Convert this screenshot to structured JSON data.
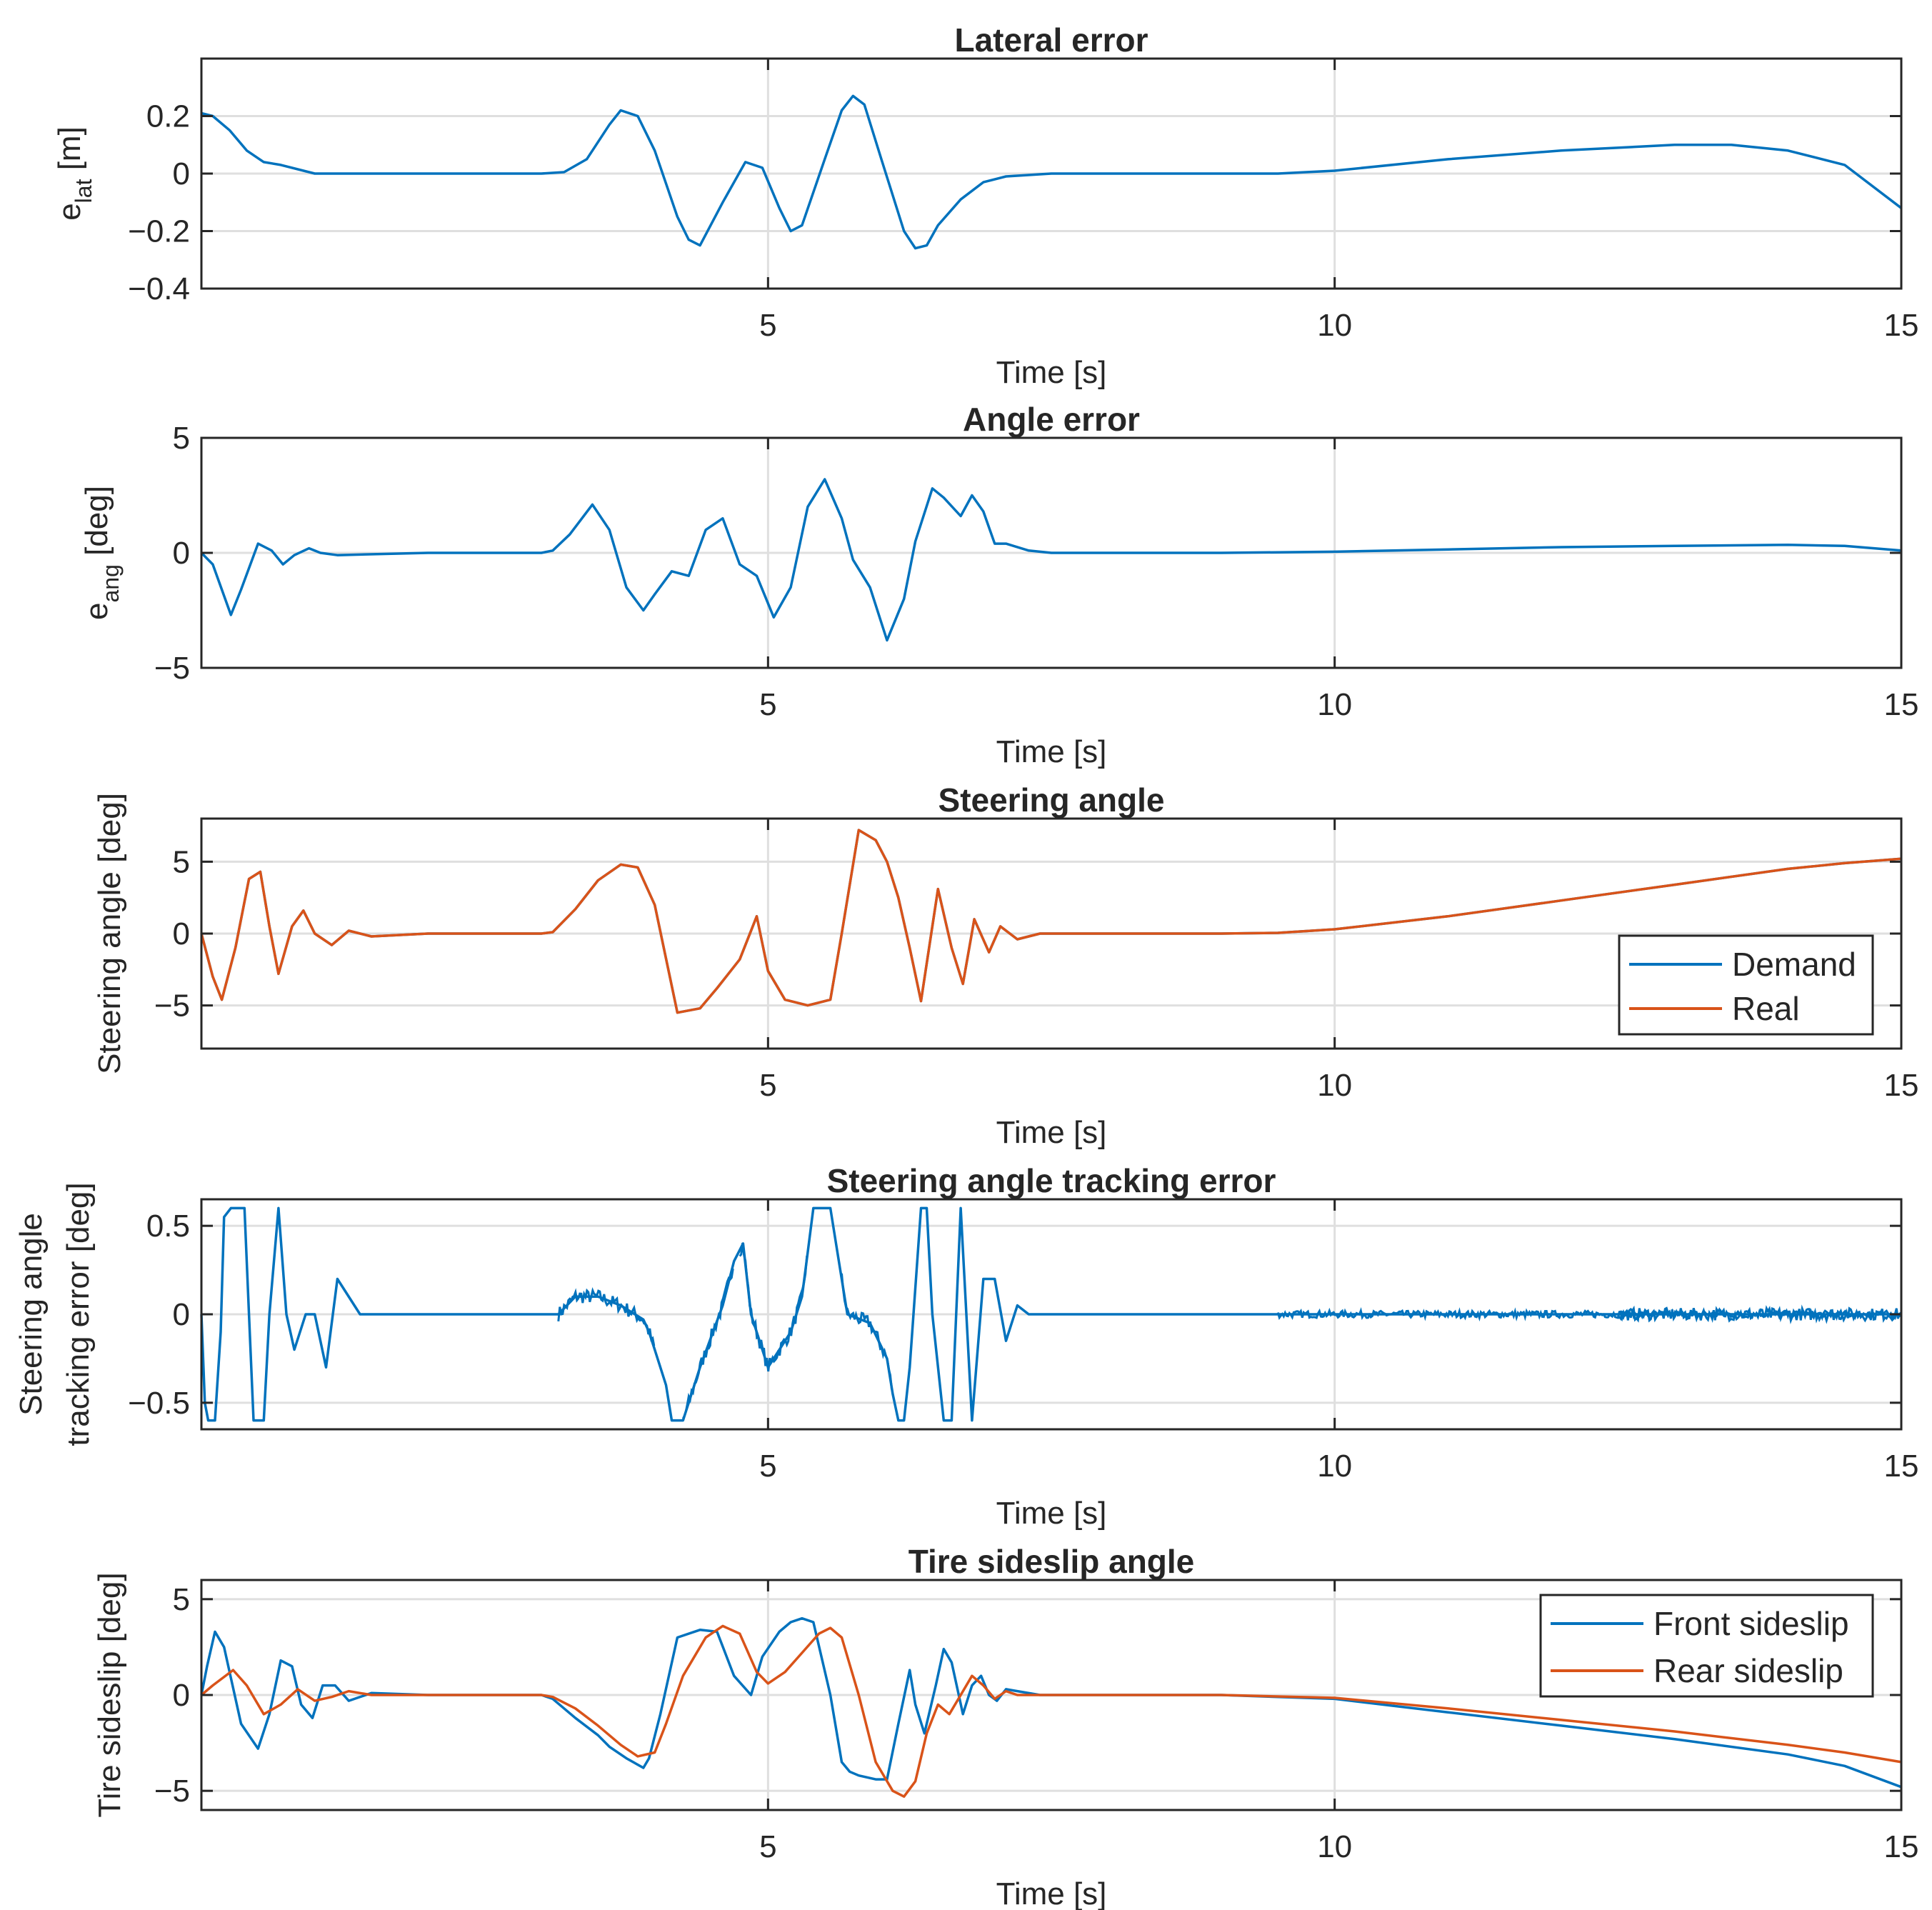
{
  "colors": {
    "blue": "#0072BD",
    "orange": "#D95319",
    "axis": "#262626",
    "grid": "#DFDFDF"
  },
  "chart_data": [
    {
      "type": "line",
      "title": "Lateral error",
      "xlabel": "Time [s]",
      "ylabel_main": "e",
      "ylabel_sub": "lat",
      "ylabel_unit": " [m]",
      "xlim": [
        0,
        15
      ],
      "ylim": [
        -0.4,
        0.4
      ],
      "xticks": [
        5,
        10,
        15
      ],
      "xtick_labels": [
        "5",
        "10",
        "15"
      ],
      "yticks": [
        0.2,
        0,
        -0.2,
        -0.4
      ],
      "ytick_labels": [
        "0.2",
        "0",
        "−0.2",
        "−0.4"
      ],
      "series": [
        {
          "name": "",
          "color": "blue",
          "x": [
            0,
            0.1,
            0.25,
            0.4,
            0.55,
            0.7,
            1,
            2,
            3,
            3.2,
            3.4,
            3.6,
            3.7,
            3.85,
            4.0,
            4.2,
            4.3,
            4.4,
            4.6,
            4.8,
            4.95,
            5.1,
            5.2,
            5.3,
            5.5,
            5.65,
            5.75,
            5.85,
            6.0,
            6.2,
            6.3,
            6.4,
            6.5,
            6.7,
            6.9,
            7.1,
            7.5,
            8,
            9,
            9.5,
            10,
            11,
            12,
            13,
            13.5,
            14,
            14.5,
            15
          ],
          "y": [
            0.21,
            0.2,
            0.15,
            0.08,
            0.04,
            0.03,
            0.0,
            0.0,
            0.0,
            0.005,
            0.05,
            0.17,
            0.22,
            0.2,
            0.08,
            -0.15,
            -0.23,
            -0.25,
            -0.1,
            0.04,
            0.02,
            -0.12,
            -0.2,
            -0.18,
            0.05,
            0.22,
            0.27,
            0.24,
            0.05,
            -0.2,
            -0.26,
            -0.25,
            -0.18,
            -0.09,
            -0.03,
            -0.01,
            0.0,
            0.0,
            0.0,
            0.0,
            0.01,
            0.05,
            0.08,
            0.1,
            0.1,
            0.08,
            0.03,
            -0.12
          ]
        }
      ]
    },
    {
      "type": "line",
      "title": "Angle error",
      "xlabel": "Time [s]",
      "ylabel_main": "e",
      "ylabel_sub": "ang",
      "ylabel_unit": " [deg]",
      "xlim": [
        0,
        15
      ],
      "ylim": [
        -5,
        5
      ],
      "xticks": [
        5,
        10,
        15
      ],
      "xtick_labels": [
        "5",
        "10",
        "15"
      ],
      "yticks": [
        5,
        0,
        -5
      ],
      "ytick_labels": [
        "5",
        "0",
        "−5"
      ],
      "series": [
        {
          "name": "",
          "color": "blue",
          "x": [
            0,
            0.1,
            0.26,
            0.35,
            0.5,
            0.62,
            0.72,
            0.82,
            0.95,
            1.05,
            1.2,
            2,
            3,
            3.1,
            3.25,
            3.45,
            3.6,
            3.75,
            3.9,
            4.0,
            4.15,
            4.3,
            4.45,
            4.6,
            4.75,
            4.9,
            5.05,
            5.2,
            5.35,
            5.5,
            5.65,
            5.75,
            5.9,
            6.05,
            6.2,
            6.3,
            6.45,
            6.55,
            6.7,
            6.8,
            6.9,
            7.0,
            7.1,
            7.3,
            7.5,
            8,
            9,
            10,
            11,
            12,
            13,
            14,
            14.5,
            15
          ],
          "y": [
            0,
            -0.5,
            -2.7,
            -1.6,
            0.4,
            0.1,
            -0.5,
            -0.1,
            0.2,
            0.0,
            -0.1,
            0.0,
            0.0,
            0.1,
            0.8,
            2.1,
            1.0,
            -1.5,
            -2.5,
            -1.8,
            -0.8,
            -1.0,
            1.0,
            1.5,
            -0.5,
            -1.0,
            -2.8,
            -1.5,
            2.0,
            3.2,
            1.5,
            -0.3,
            -1.5,
            -3.8,
            -2.0,
            0.5,
            2.8,
            2.4,
            1.6,
            2.5,
            1.8,
            0.4,
            0.4,
            0.1,
            0.0,
            0.0,
            0.0,
            0.05,
            0.15,
            0.25,
            0.3,
            0.35,
            0.3,
            0.1
          ]
        }
      ]
    },
    {
      "type": "line",
      "title": "Steering angle",
      "xlabel": "Time [s]",
      "ylabel_main": "Steering angle [deg]",
      "xlim": [
        0,
        15
      ],
      "ylim": [
        -8,
        8
      ],
      "xticks": [
        5,
        10,
        15
      ],
      "xtick_labels": [
        "5",
        "10",
        "15"
      ],
      "yticks": [
        5,
        0,
        -5
      ],
      "ytick_labels": [
        "5",
        "0",
        "−5"
      ],
      "legend": [
        "Demand",
        "Real"
      ],
      "series": [
        {
          "name": "Demand",
          "color": "blue",
          "x": [
            0,
            0.1,
            0.18,
            0.3,
            0.42,
            0.52,
            0.6,
            0.68,
            0.8,
            0.9,
            1.0,
            1.15,
            1.3,
            1.5,
            2,
            3,
            3.1,
            3.3,
            3.5,
            3.7,
            3.85,
            4.0,
            4.2,
            4.4,
            4.55,
            4.75,
            4.9,
            5.0,
            5.15,
            5.35,
            5.55,
            5.65,
            5.8,
            5.95,
            6.05,
            6.15,
            6.25,
            6.35,
            6.5,
            6.62,
            6.72,
            6.82,
            6.95,
            7.05,
            7.2,
            7.4,
            8,
            9,
            9.5,
            10,
            11,
            12,
            13,
            14,
            14.5,
            15
          ],
          "y": [
            0,
            -3,
            -4.6,
            -1,
            3.8,
            4.3,
            0.5,
            -2.8,
            0.5,
            1.6,
            0,
            -0.8,
            0.2,
            -0.2,
            0.0,
            0.0,
            0.1,
            1.7,
            3.7,
            4.8,
            4.6,
            2.0,
            -5.5,
            -5.2,
            -3.8,
            -1.8,
            1.2,
            -2.6,
            -4.6,
            -5.0,
            -4.6,
            0,
            7.2,
            6.5,
            5.0,
            2.5,
            -1.0,
            -4.7,
            3.1,
            -1.0,
            -3.5,
            1.0,
            -1.3,
            0.5,
            -0.4,
            0.0,
            0.0,
            0.0,
            0.05,
            0.3,
            1.2,
            2.3,
            3.4,
            4.5,
            4.9,
            5.2
          ]
        },
        {
          "name": "Real",
          "color": "orange",
          "x": [
            0,
            0.1,
            0.18,
            0.3,
            0.42,
            0.52,
            0.6,
            0.68,
            0.8,
            0.9,
            1.0,
            1.15,
            1.3,
            1.5,
            2,
            3,
            3.1,
            3.3,
            3.5,
            3.7,
            3.85,
            4.0,
            4.2,
            4.4,
            4.55,
            4.75,
            4.9,
            5.0,
            5.15,
            5.35,
            5.55,
            5.65,
            5.8,
            5.95,
            6.05,
            6.15,
            6.25,
            6.35,
            6.5,
            6.62,
            6.72,
            6.82,
            6.95,
            7.05,
            7.2,
            7.4,
            8,
            9,
            9.5,
            10,
            11,
            12,
            13,
            14,
            14.5,
            15
          ],
          "y": [
            0,
            -3,
            -4.6,
            -1,
            3.8,
            4.3,
            0.5,
            -2.8,
            0.5,
            1.6,
            0,
            -0.8,
            0.2,
            -0.2,
            0.0,
            0.0,
            0.1,
            1.7,
            3.7,
            4.8,
            4.6,
            2.0,
            -5.5,
            -5.2,
            -3.8,
            -1.8,
            1.2,
            -2.6,
            -4.6,
            -5.0,
            -4.6,
            0,
            7.2,
            6.5,
            5.0,
            2.5,
            -1.0,
            -4.7,
            3.1,
            -1.0,
            -3.5,
            1.0,
            -1.3,
            0.5,
            -0.4,
            0.0,
            0.0,
            0.0,
            0.05,
            0.3,
            1.2,
            2.3,
            3.4,
            4.5,
            4.9,
            5.2
          ]
        }
      ]
    },
    {
      "type": "line",
      "title": "Steering angle tracking error",
      "xlabel": "Time [s]",
      "ylabel_line1": "Steering angle",
      "ylabel_line2": "tracking error [deg]",
      "xlim": [
        0,
        15
      ],
      "ylim": [
        -0.65,
        0.65
      ],
      "xticks": [
        5,
        10,
        15
      ],
      "xtick_labels": [
        "5",
        "10",
        "15"
      ],
      "yticks": [
        0.5,
        0,
        -0.5
      ],
      "ytick_labels": [
        "0.5",
        "0",
        "−0.5"
      ],
      "noise": [
        {
          "from": 3.15,
          "to": 4.0,
          "amp": 0.04
        },
        {
          "from": 4.25,
          "to": 4.7,
          "amp": 0.04
        },
        {
          "from": 4.75,
          "to": 5.35,
          "amp": 0.04
        },
        {
          "from": 5.65,
          "to": 6.1,
          "amp": 0.04
        },
        {
          "from": 9.5,
          "to": 15,
          "amp": 0.02
        },
        {
          "from": 12.5,
          "to": 15,
          "amp": 0.035
        }
      ],
      "series": [
        {
          "name": "",
          "color": "blue",
          "x": [
            0,
            0.03,
            0.06,
            0.12,
            0.17,
            0.2,
            0.26,
            0.3,
            0.38,
            0.42,
            0.46,
            0.5,
            0.55,
            0.6,
            0.68,
            0.75,
            0.82,
            0.92,
            1.0,
            1.1,
            1.2,
            1.4,
            2,
            3,
            3.15,
            3.3,
            3.5,
            3.7,
            3.9,
            3.95,
            4.0,
            4.1,
            4.15,
            4.25,
            4.4,
            4.6,
            4.7,
            4.78,
            4.85,
            5.0,
            5.2,
            5.3,
            5.35,
            5.4,
            5.5,
            5.55,
            5.6,
            5.7,
            5.9,
            6.05,
            6.1,
            6.15,
            6.2,
            6.25,
            6.35,
            6.4,
            6.45,
            6.55,
            6.62,
            6.7,
            6.8,
            6.9,
            7.0,
            7.1,
            7.2,
            7.3,
            7.4,
            7.6,
            8,
            9,
            10,
            12,
            15
          ],
          "y": [
            0,
            -0.5,
            -0.6,
            -0.6,
            -0.1,
            0.55,
            0.6,
            0.6,
            0.6,
            0.0,
            -0.6,
            -0.6,
            -0.6,
            0.0,
            0.6,
            0.0,
            -0.2,
            0.0,
            0.0,
            -0.3,
            0.2,
            0.0,
            0.0,
            0.0,
            0.0,
            0.1,
            0.1,
            0.05,
            -0.03,
            -0.1,
            -0.2,
            -0.4,
            -0.6,
            -0.6,
            -0.3,
            0.05,
            0.3,
            0.4,
            0.0,
            -0.3,
            -0.1,
            0.1,
            0.35,
            0.6,
            0.6,
            0.6,
            0.4,
            0.0,
            -0.05,
            -0.25,
            -0.45,
            -0.6,
            -0.6,
            -0.3,
            0.6,
            0.6,
            0.0,
            -0.6,
            -0.6,
            0.6,
            -0.6,
            0.2,
            0.2,
            -0.15,
            0.05,
            0.0,
            0.0,
            0.0,
            0.0,
            0.0,
            0.0,
            0.0,
            0.0
          ]
        }
      ]
    },
    {
      "type": "line",
      "title": "Tire sideslip angle",
      "xlabel": "Time [s]",
      "ylabel_main": "Tire sideslip [deg]",
      "xlim": [
        0,
        15
      ],
      "ylim": [
        -6,
        6
      ],
      "xticks": [
        5,
        10,
        15
      ],
      "xtick_labels": [
        "5",
        "10",
        "15"
      ],
      "yticks": [
        5,
        0,
        -5
      ],
      "ytick_labels": [
        "5",
        "0",
        "−5"
      ],
      "legend": [
        "Front sideslip",
        "Rear sideslip"
      ],
      "series": [
        {
          "name": "Front sideslip",
          "color": "blue",
          "x": [
            0,
            0.05,
            0.12,
            0.2,
            0.35,
            0.5,
            0.6,
            0.7,
            0.8,
            0.88,
            0.98,
            1.07,
            1.18,
            1.3,
            1.5,
            2,
            3,
            3.1,
            3.3,
            3.5,
            3.6,
            3.75,
            3.9,
            3.95,
            4.05,
            4.2,
            4.4,
            4.55,
            4.7,
            4.85,
            4.95,
            5.1,
            5.2,
            5.3,
            5.4,
            5.55,
            5.65,
            5.72,
            5.8,
            5.95,
            6.05,
            6.15,
            6.25,
            6.3,
            6.38,
            6.48,
            6.55,
            6.62,
            6.72,
            6.8,
            6.88,
            6.95,
            7.02,
            7.1,
            7.2,
            7.4,
            7.6,
            8,
            9,
            10,
            11,
            12,
            13,
            14,
            14.5,
            15
          ],
          "y": [
            0,
            1.5,
            3.3,
            2.5,
            -1.5,
            -2.8,
            -1.0,
            1.8,
            1.5,
            -0.5,
            -1.2,
            0.5,
            0.5,
            -0.3,
            0.1,
            0.0,
            0.0,
            -0.2,
            -1.2,
            -2.1,
            -2.7,
            -3.3,
            -3.8,
            -3.3,
            -1.0,
            3.0,
            3.4,
            3.3,
            1.0,
            0.0,
            2.0,
            3.3,
            3.8,
            4.0,
            3.8,
            0.0,
            -3.5,
            -4.0,
            -4.2,
            -4.4,
            -4.4,
            -1.5,
            1.3,
            -0.5,
            -2.0,
            0.5,
            2.4,
            1.7,
            -1.0,
            0.5,
            1.0,
            0.0,
            -0.3,
            0.3,
            0.2,
            0.0,
            0.0,
            0.0,
            0.0,
            -0.2,
            -0.9,
            -1.6,
            -2.3,
            -3.1,
            -3.7,
            -4.8
          ]
        },
        {
          "name": "Rear sideslip",
          "color": "orange",
          "x": [
            0,
            0.1,
            0.28,
            0.4,
            0.55,
            0.7,
            0.85,
            1.0,
            1.15,
            1.3,
            1.5,
            2,
            3,
            3.1,
            3.3,
            3.5,
            3.7,
            3.85,
            4.0,
            4.1,
            4.25,
            4.45,
            4.6,
            4.75,
            4.9,
            5.0,
            5.15,
            5.3,
            5.45,
            5.55,
            5.65,
            5.8,
            5.95,
            6.1,
            6.2,
            6.3,
            6.4,
            6.5,
            6.6,
            6.7,
            6.8,
            6.9,
            7.0,
            7.1,
            7.2,
            7.4,
            7.6,
            8,
            9,
            10,
            11,
            12,
            13,
            14,
            14.5,
            15
          ],
          "y": [
            0,
            0.5,
            1.3,
            0.5,
            -1.0,
            -0.5,
            0.3,
            -0.3,
            -0.1,
            0.2,
            0.0,
            0.0,
            0.0,
            -0.1,
            -0.7,
            -1.6,
            -2.6,
            -3.2,
            -3.0,
            -1.5,
            1.0,
            3.0,
            3.6,
            3.2,
            1.2,
            0.6,
            1.2,
            2.2,
            3.2,
            3.5,
            3.0,
            0.0,
            -3.5,
            -5.0,
            -5.3,
            -4.5,
            -2.0,
            -0.5,
            -1.0,
            0.0,
            1.0,
            0.5,
            -0.2,
            0.2,
            0.0,
            0.0,
            0.0,
            0.0,
            0.0,
            -0.15,
            -0.7,
            -1.3,
            -1.9,
            -2.6,
            -3.0,
            -3.5
          ]
        }
      ]
    }
  ]
}
